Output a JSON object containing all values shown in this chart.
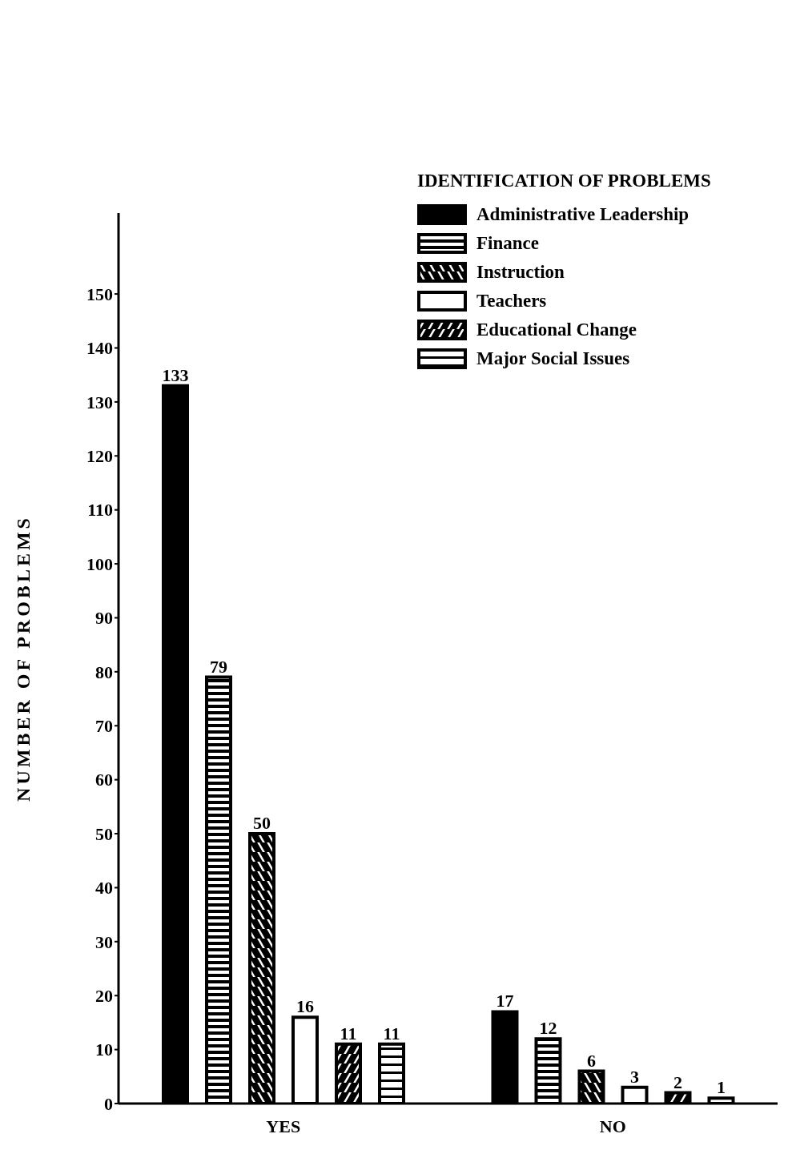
{
  "chart_data": {
    "type": "bar",
    "ylabel": "NUMBER OF PROBLEMS",
    "legend_title": "IDENTIFICATION OF PROBLEMS",
    "categories": [
      "YES",
      "NO"
    ],
    "series": [
      {
        "name": "Administrative Leadership",
        "color": "#000000",
        "values": [
          133,
          17
        ]
      },
      {
        "name": "Finance",
        "color": "#000000",
        "values": [
          79,
          12
        ]
      },
      {
        "name": "Instruction",
        "color": "#000000",
        "values": [
          50,
          6
        ]
      },
      {
        "name": "Teachers",
        "color": "#000000",
        "values": [
          16,
          3
        ]
      },
      {
        "name": "Educational Change",
        "color": "#000000",
        "values": [
          11,
          2
        ]
      },
      {
        "name": "Major Social Issues",
        "color": "#000000",
        "values": [
          11,
          1
        ]
      }
    ],
    "ylim": [
      0,
      165
    ],
    "yticks": [
      0,
      10,
      20,
      30,
      40,
      50,
      60,
      70,
      80,
      90,
      100,
      110,
      120,
      130,
      140,
      150
    ],
    "data_labels": true,
    "legend": "top right",
    "grid": false
  }
}
